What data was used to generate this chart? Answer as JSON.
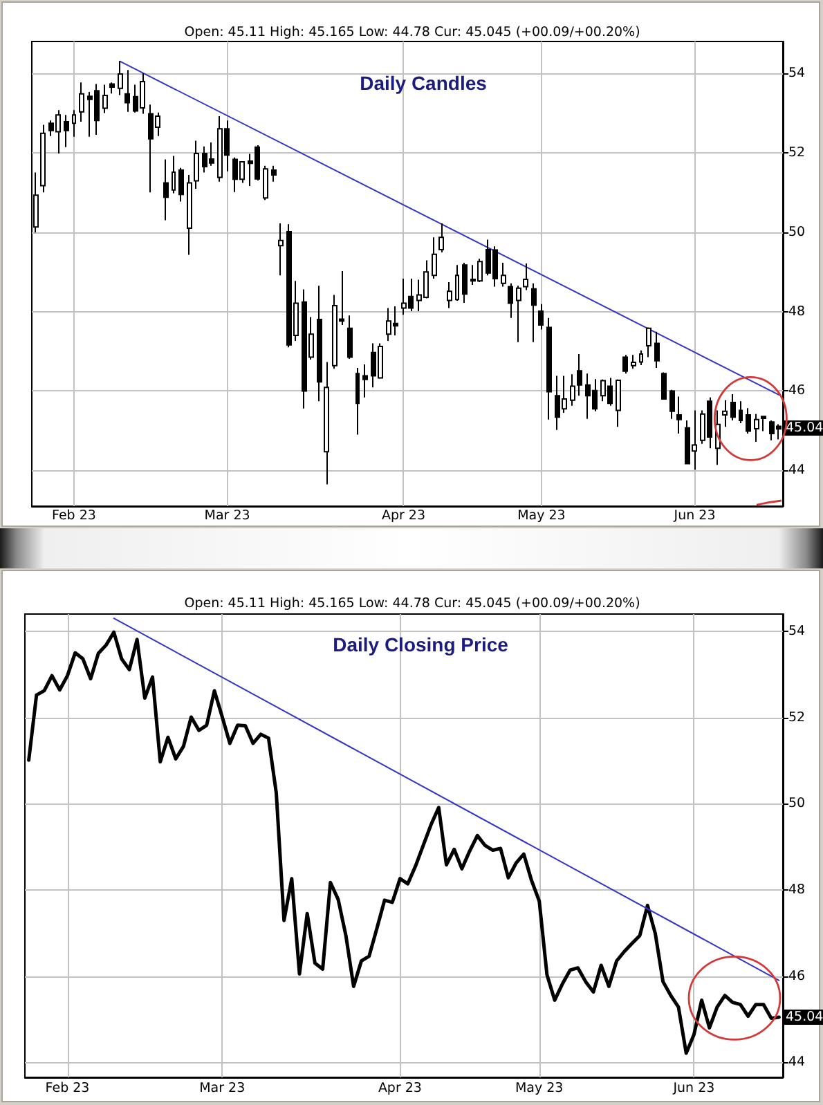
{
  "chart_data": [
    {
      "type": "candlestick",
      "title": "Daily Candles",
      "subtitle": "Open: 45.11 High: 45.165 Low: 44.78 Cur: 45.045 (+00.09/+00.20%)",
      "categories": [
        null,
        null,
        null,
        null,
        null,
        "Feb 23",
        null,
        null,
        null,
        null,
        null,
        null,
        null,
        null,
        null,
        null,
        null,
        null,
        null,
        null,
        null,
        null,
        null,
        null,
        null,
        "Mar 23",
        null,
        null,
        null,
        null,
        null,
        null,
        null,
        null,
        null,
        null,
        null,
        null,
        null,
        null,
        null,
        null,
        null,
        null,
        null,
        null,
        null,
        null,
        "Apr 23",
        null,
        null,
        null,
        null,
        null,
        null,
        null,
        null,
        null,
        null,
        null,
        null,
        null,
        null,
        null,
        null,
        null,
        "May 23",
        null,
        null,
        null,
        null,
        null,
        null,
        null,
        null,
        null,
        null,
        null,
        null,
        null,
        null,
        null,
        null,
        null,
        null,
        null,
        "Jun 23",
        null,
        null,
        null,
        null,
        null,
        null,
        null,
        null,
        null,
        null,
        null
      ],
      "ohlc": [
        [
          50.13,
          51.5,
          49.99,
          50.93
        ],
        [
          51.17,
          52.7,
          51.0,
          52.49
        ],
        [
          52.74,
          52.81,
          52.42,
          52.56
        ],
        [
          52.53,
          53.07,
          51.98,
          52.95
        ],
        [
          52.78,
          52.95,
          52.14,
          52.56
        ],
        [
          52.74,
          53.07,
          52.4,
          52.95
        ],
        [
          53.03,
          53.77,
          52.78,
          53.48
        ],
        [
          53.42,
          53.53,
          52.4,
          53.34
        ],
        [
          53.56,
          53.73,
          52.45,
          52.81
        ],
        [
          53.12,
          53.71,
          53.0,
          53.44
        ],
        [
          53.73,
          53.77,
          53.49,
          53.65
        ],
        [
          53.62,
          54.31,
          53.45,
          53.98
        ],
        [
          53.48,
          54.08,
          53.03,
          53.26
        ],
        [
          53.41,
          53.71,
          53.01,
          53.05
        ],
        [
          53.13,
          54.0,
          52.98,
          53.79
        ],
        [
          52.98,
          53.21,
          51.0,
          52.35
        ],
        [
          52.64,
          53.01,
          52.42,
          52.92
        ],
        [
          51.24,
          51.83,
          50.3,
          50.88
        ],
        [
          51.06,
          51.92,
          50.98,
          51.51
        ],
        [
          51.56,
          51.62,
          50.77,
          50.95
        ],
        [
          50.1,
          51.44,
          49.43,
          51.24
        ],
        [
          51.29,
          52.3,
          51.09,
          51.98
        ],
        [
          51.98,
          52.16,
          51.5,
          51.65
        ],
        [
          51.84,
          52.26,
          51.67,
          51.74
        ],
        [
          51.38,
          52.92,
          51.27,
          52.6
        ],
        [
          52.6,
          52.81,
          51.53,
          51.94
        ],
        [
          51.83,
          51.88,
          51.01,
          51.33
        ],
        [
          51.33,
          51.79,
          51.24,
          51.77
        ],
        [
          51.79,
          51.97,
          51.16,
          51.73
        ],
        [
          52.14,
          52.19,
          51.3,
          51.34
        ],
        [
          50.86,
          51.67,
          50.81,
          51.59
        ],
        [
          51.56,
          51.67,
          51.27,
          51.44
        ],
        [
          49.66,
          50.22,
          48.91,
          49.79
        ],
        [
          50.01,
          50.2,
          47.1,
          47.16
        ],
        [
          47.4,
          48.77,
          47.26,
          48.21
        ],
        [
          48.24,
          48.56,
          45.56,
          46.0
        ],
        [
          46.85,
          47.86,
          46.79,
          47.43
        ],
        [
          47.8,
          48.65,
          45.74,
          46.23
        ],
        [
          44.47,
          46.73,
          43.65,
          46.09
        ],
        [
          46.64,
          48.42,
          46.56,
          48.15
        ],
        [
          47.81,
          49.02,
          47.66,
          47.76
        ],
        [
          47.58,
          47.9,
          46.81,
          46.85
        ],
        [
          46.44,
          46.58,
          44.9,
          45.69
        ],
        [
          46.38,
          46.67,
          45.84,
          46.29
        ],
        [
          46.97,
          47.2,
          46.09,
          46.38
        ],
        [
          46.33,
          47.2,
          46.31,
          47.12
        ],
        [
          47.43,
          48.09,
          47.26,
          47.76
        ],
        [
          47.7,
          48.13,
          47.4,
          47.64
        ],
        [
          48.09,
          48.83,
          47.92,
          48.21
        ],
        [
          48.38,
          48.83,
          48.01,
          48.09
        ],
        [
          48.28,
          48.8,
          48.01,
          48.42
        ],
        [
          48.36,
          49.29,
          48.33,
          49.0
        ],
        [
          48.91,
          49.87,
          48.83,
          49.44
        ],
        [
          49.56,
          50.22,
          49.49,
          49.87
        ],
        [
          48.28,
          48.74,
          48.09,
          48.51
        ],
        [
          48.3,
          49.17,
          48.27,
          48.91
        ],
        [
          49.17,
          49.23,
          48.22,
          48.44
        ],
        [
          48.81,
          49.17,
          48.67,
          48.77
        ],
        [
          48.77,
          49.33,
          48.74,
          49.26
        ],
        [
          49.56,
          49.81,
          48.91,
          48.97
        ],
        [
          49.55,
          49.64,
          48.63,
          48.83
        ],
        [
          48.71,
          49.23,
          48.63,
          48.91
        ],
        [
          48.63,
          48.71,
          47.84,
          48.21
        ],
        [
          48.28,
          48.65,
          47.23,
          48.59
        ],
        [
          48.63,
          49.21,
          48.54,
          48.81
        ],
        [
          48.57,
          48.71,
          47.23,
          48.16
        ],
        [
          48.01,
          48.19,
          47.55,
          47.66
        ],
        [
          47.6,
          47.84,
          45.28,
          45.98
        ],
        [
          45.88,
          46.38,
          45.02,
          45.34
        ],
        [
          45.55,
          46.38,
          45.45,
          45.8
        ],
        [
          45.77,
          46.42,
          45.63,
          46.12
        ],
        [
          46.51,
          46.93,
          45.88,
          46.15
        ],
        [
          46.15,
          46.44,
          45.3,
          45.88
        ],
        [
          46.01,
          46.3,
          45.49,
          45.55
        ],
        [
          45.88,
          46.29,
          45.74,
          46.26
        ],
        [
          46.12,
          46.33,
          45.63,
          45.69
        ],
        [
          45.51,
          46.29,
          45.1,
          46.27
        ],
        [
          46.85,
          46.91,
          46.44,
          46.5
        ],
        [
          46.64,
          46.91,
          46.56,
          46.72
        ],
        [
          46.73,
          47.02,
          46.65,
          46.93
        ],
        [
          47.14,
          47.6,
          46.85,
          47.58
        ],
        [
          47.2,
          47.49,
          46.58,
          46.76
        ],
        [
          46.44,
          46.47,
          45.78,
          45.8
        ],
        [
          46.0,
          46.03,
          45.3,
          45.49
        ],
        [
          45.4,
          45.86,
          44.93,
          45.28
        ],
        [
          45.07,
          45.26,
          44.17,
          44.17
        ],
        [
          44.49,
          45.51,
          44.02,
          44.64
        ],
        [
          44.76,
          45.51,
          44.67,
          45.42
        ],
        [
          45.74,
          45.84,
          44.56,
          44.84
        ],
        [
          44.56,
          45.51,
          44.14,
          45.16
        ],
        [
          45.4,
          45.77,
          45.1,
          45.49
        ],
        [
          45.71,
          45.92,
          45.26,
          45.34
        ],
        [
          45.51,
          45.74,
          45.19,
          45.26
        ],
        [
          45.4,
          45.57,
          44.93,
          44.99
        ],
        [
          45.05,
          45.42,
          44.72,
          45.28
        ],
        [
          45.36,
          45.37,
          44.99,
          45.31
        ],
        [
          45.22,
          45.26,
          44.76,
          44.93
        ],
        [
          45.11,
          45.165,
          44.78,
          45.045
        ]
      ],
      "color": "#000000",
      "series": [
        {
          "type": "line",
          "color": "#3535c8",
          "values": [
            null,
            null,
            null,
            null,
            null,
            null,
            null,
            null,
            null,
            null,
            null,
            54.3,
            null,
            null,
            null,
            null,
            null,
            null,
            null,
            null,
            null,
            null,
            null,
            null,
            null,
            null,
            null,
            null,
            null,
            null,
            null,
            null,
            null,
            null,
            null,
            null,
            null,
            null,
            null,
            null,
            null,
            null,
            null,
            null,
            null,
            null,
            null,
            null,
            null,
            null,
            null,
            null,
            null,
            null,
            null,
            null,
            null,
            null,
            null,
            null,
            null,
            null,
            null,
            null,
            null,
            null,
            null,
            null,
            null,
            null,
            null,
            null,
            null,
            null,
            null,
            null,
            null,
            null,
            null,
            null,
            null,
            null,
            null,
            null,
            null,
            null,
            null,
            null,
            null,
            null,
            null,
            null,
            null,
            null,
            null,
            null,
            null,
            45.9
          ]
        }
      ],
      "ylim": [
        43.1,
        54.8
      ],
      "yticks": [
        44,
        46,
        48,
        50,
        52,
        54
      ],
      "grid": true,
      "marker": "none",
      "annotations": [
        {
          "text": "45.04",
          "y": 45.045
        }
      ]
    },
    {
      "type": "line",
      "title": "Daily Closing Price",
      "subtitle": "Open: 45.11 High: 45.165 Low: 44.78 Cur: 45.045 (+00.09/+00.20%)",
      "categories": [
        null,
        null,
        null,
        null,
        null,
        "Feb 23",
        null,
        null,
        null,
        null,
        null,
        null,
        null,
        null,
        null,
        null,
        null,
        null,
        null,
        null,
        null,
        null,
        null,
        null,
        null,
        "Mar 23",
        null,
        null,
        null,
        null,
        null,
        null,
        null,
        null,
        null,
        null,
        null,
        null,
        null,
        null,
        null,
        null,
        null,
        null,
        null,
        null,
        null,
        null,
        "Apr 23",
        null,
        null,
        null,
        null,
        null,
        null,
        null,
        null,
        null,
        null,
        null,
        null,
        null,
        null,
        null,
        null,
        null,
        "May 23",
        null,
        null,
        null,
        null,
        null,
        null,
        null,
        null,
        null,
        null,
        null,
        null,
        null,
        null,
        null,
        null,
        null,
        null,
        null,
        "Jun 23",
        null,
        null,
        null,
        null,
        null,
        null,
        null,
        null,
        null,
        null,
        null
      ],
      "series": [
        {
          "color": "#000000",
          "values": [
            51.01,
            52.52,
            52.62,
            52.97,
            52.64,
            52.97,
            53.5,
            53.36,
            52.9,
            53.49,
            53.68,
            53.98,
            53.36,
            53.11,
            53.81,
            52.45,
            52.94,
            50.97,
            51.54,
            51.04,
            51.33,
            52.01,
            51.7,
            51.82,
            52.62,
            52.02,
            51.4,
            51.82,
            51.81,
            51.4,
            51.61,
            51.52,
            50.25,
            47.29,
            48.26,
            46.05,
            47.45,
            46.3,
            46.16,
            48.17,
            47.78,
            46.94,
            45.76,
            46.35,
            46.46,
            47.1,
            47.76,
            47.71,
            48.26,
            48.14,
            48.55,
            49.03,
            49.51,
            49.91,
            48.58,
            48.94,
            48.49,
            48.9,
            49.26,
            49.03,
            48.92,
            48.96,
            48.28,
            48.62,
            48.83,
            48.22,
            47.74,
            46.03,
            45.44,
            45.82,
            46.14,
            46.19,
            45.87,
            45.63,
            46.25,
            45.76,
            46.35,
            46.57,
            46.76,
            46.94,
            47.64,
            46.99,
            45.87,
            45.55,
            45.28,
            44.21,
            44.64,
            45.44,
            44.8,
            45.28,
            45.55,
            45.39,
            45.34,
            45.07,
            45.34,
            45.34,
            45.02,
            45.045
          ]
        },
        {
          "color": "#3535c8",
          "values": [
            null,
            null,
            null,
            null,
            null,
            null,
            null,
            null,
            null,
            null,
            null,
            54.3,
            null,
            null,
            null,
            null,
            null,
            null,
            null,
            null,
            null,
            null,
            null,
            null,
            null,
            null,
            null,
            null,
            null,
            null,
            null,
            null,
            null,
            null,
            null,
            null,
            null,
            null,
            null,
            null,
            null,
            null,
            null,
            null,
            null,
            null,
            null,
            null,
            null,
            null,
            null,
            null,
            null,
            null,
            null,
            null,
            null,
            null,
            null,
            null,
            null,
            null,
            null,
            null,
            null,
            null,
            null,
            null,
            null,
            null,
            null,
            null,
            null,
            null,
            null,
            null,
            null,
            null,
            null,
            null,
            null,
            null,
            null,
            null,
            null,
            null,
            null,
            null,
            null,
            null,
            null,
            null,
            null,
            null,
            null,
            null,
            null,
            45.9
          ]
        }
      ],
      "ylim": [
        43.65,
        54.4
      ],
      "yticks": [
        44,
        46,
        48,
        50,
        52,
        54
      ],
      "grid": true,
      "marker": "none",
      "annotations": [
        {
          "text": "45.04",
          "y": 45.045
        }
      ]
    }
  ]
}
